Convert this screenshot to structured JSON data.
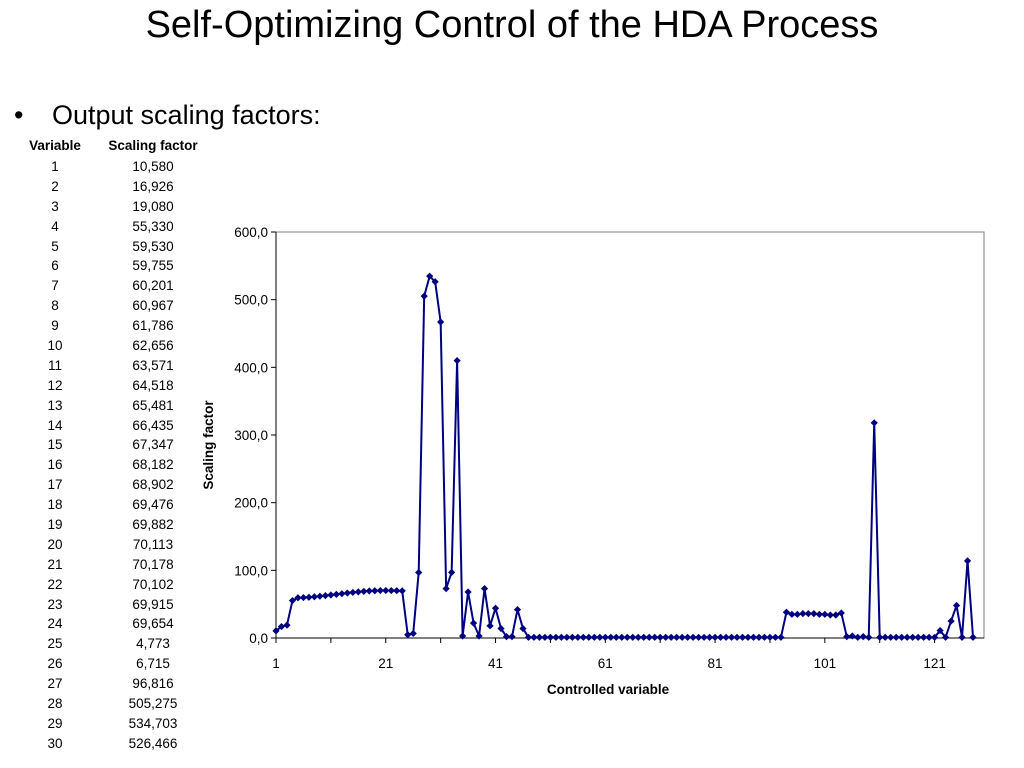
{
  "slide": {
    "title": "Self-Optimizing Control of the HDA Process",
    "bullet": "Output scaling factors:"
  },
  "table": {
    "headers": [
      "Variable",
      "Scaling factor"
    ],
    "rows": [
      [
        "1",
        "10,580"
      ],
      [
        "2",
        "16,926"
      ],
      [
        "3",
        "19,080"
      ],
      [
        "4",
        "55,330"
      ],
      [
        "5",
        "59,530"
      ],
      [
        "6",
        "59,755"
      ],
      [
        "7",
        "60,201"
      ],
      [
        "8",
        "60,967"
      ],
      [
        "9",
        "61,786"
      ],
      [
        "10",
        "62,656"
      ],
      [
        "11",
        "63,571"
      ],
      [
        "12",
        "64,518"
      ],
      [
        "13",
        "65,481"
      ],
      [
        "14",
        "66,435"
      ],
      [
        "15",
        "67,347"
      ],
      [
        "16",
        "68,182"
      ],
      [
        "17",
        "68,902"
      ],
      [
        "18",
        "69,476"
      ],
      [
        "19",
        "69,882"
      ],
      [
        "20",
        "70,113"
      ],
      [
        "21",
        "70,178"
      ],
      [
        "22",
        "70,102"
      ],
      [
        "23",
        "69,915"
      ],
      [
        "24",
        "69,654"
      ],
      [
        "25",
        "4,773"
      ],
      [
        "26",
        "6,715"
      ],
      [
        "27",
        "96,816"
      ],
      [
        "28",
        "505,275"
      ],
      [
        "29",
        "534,703"
      ],
      [
        "30",
        "526,466"
      ]
    ]
  },
  "chart_data": {
    "type": "line",
    "xlabel": "Controlled variable",
    "ylabel": "Scaling factor",
    "ylim": [
      0,
      600
    ],
    "yticks": [
      "0,0",
      "100,0",
      "200,0",
      "300,0",
      "400,0",
      "500,0",
      "600,0"
    ],
    "xticks": [
      "1",
      "21",
      "41",
      "61",
      "81",
      "101",
      "121"
    ],
    "xlim": [
      1,
      130
    ],
    "grid": false,
    "color": "#000080",
    "values": [
      10.58,
      16.926,
      19.08,
      55.33,
      59.53,
      59.755,
      60.201,
      60.967,
      61.786,
      62.656,
      63.571,
      64.518,
      65.481,
      66.435,
      67.347,
      68.182,
      68.902,
      69.476,
      69.882,
      70.113,
      70.178,
      70.102,
      69.915,
      69.654,
      4.773,
      6.715,
      96.816,
      505.275,
      534.703,
      526.466,
      467,
      73,
      97,
      410,
      3,
      68,
      22,
      3,
      73,
      18,
      44,
      14,
      2,
      2,
      42,
      14,
      1,
      1,
      1,
      1,
      1,
      1,
      1,
      1,
      1,
      1,
      1,
      1,
      1,
      1,
      1,
      1,
      1,
      1,
      1,
      1,
      1,
      1,
      1,
      1,
      1,
      1,
      1,
      1,
      1,
      1,
      1,
      1,
      1,
      1,
      1,
      1,
      1,
      1,
      1,
      1,
      1,
      1,
      1,
      1,
      1,
      1,
      1,
      38,
      35,
      35,
      36,
      36,
      36,
      35,
      35,
      34,
      34,
      37,
      2,
      3,
      1,
      2,
      1,
      318,
      1,
      1,
      1,
      1,
      1,
      1,
      1,
      1,
      1,
      1,
      1,
      11,
      1,
      25,
      48,
      1,
      114,
      1
    ]
  }
}
